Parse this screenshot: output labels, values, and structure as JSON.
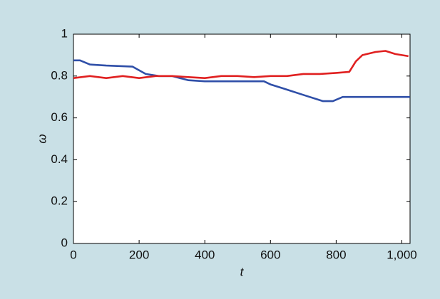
{
  "chart_data": {
    "type": "line",
    "xlabel": "t",
    "ylabel": "ω",
    "xlim": [
      0,
      1025
    ],
    "ylim": [
      0,
      1
    ],
    "xticks": [
      0,
      200,
      400,
      600,
      800,
      {
        "value": 1000,
        "label": "1,000"
      }
    ],
    "yticks": [
      0,
      0.2,
      0.4,
      0.6,
      0.8,
      1
    ],
    "series": [
      {
        "color": "#2f4fa8",
        "x": [
          0,
          20,
          50,
          100,
          180,
          220,
          260,
          300,
          350,
          400,
          580,
          600,
          640,
          700,
          760,
          790,
          820,
          1025
        ],
        "values": [
          0.875,
          0.875,
          0.855,
          0.85,
          0.845,
          0.81,
          0.8,
          0.8,
          0.78,
          0.775,
          0.775,
          0.76,
          0.74,
          0.71,
          0.68,
          0.68,
          0.7,
          0.7
        ]
      },
      {
        "color": "#e02020",
        "x": [
          0,
          50,
          100,
          150,
          200,
          250,
          300,
          350,
          400,
          450,
          500,
          550,
          600,
          650,
          700,
          750,
          800,
          840,
          860,
          880,
          920,
          950,
          980,
          1020
        ],
        "values": [
          0.79,
          0.8,
          0.79,
          0.8,
          0.79,
          0.8,
          0.8,
          0.795,
          0.79,
          0.8,
          0.8,
          0.795,
          0.8,
          0.8,
          0.81,
          0.81,
          0.815,
          0.82,
          0.87,
          0.9,
          0.915,
          0.92,
          0.905,
          0.895
        ]
      }
    ]
  }
}
